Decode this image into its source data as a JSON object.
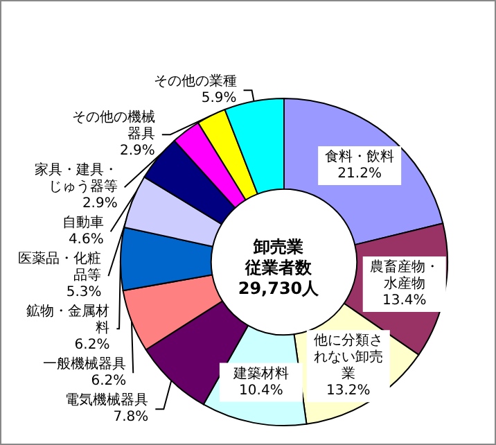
{
  "chart_data": {
    "type": "donut",
    "annotations": [
      "卸売業",
      "従業者数",
      "29,730人"
    ],
    "categories": [
      "食料・飲料",
      "農畜産物・水産物",
      "他に分類されない卸売業",
      "建築材料",
      "電気機械器具",
      "一般機械器具",
      "鉱物・金属材料",
      "医薬品・化粧品等",
      "自動車",
      "家具・建具・じゅう器等",
      "その他の機械器具",
      "その他の業種"
    ],
    "values": [
      21.2,
      13.4,
      13.2,
      10.4,
      7.8,
      6.2,
      6.2,
      5.3,
      4.6,
      2.9,
      2.9,
      5.9
    ],
    "colors": [
      "#9999ff",
      "#993366",
      "#ffffcc",
      "#ccffff",
      "#660066",
      "#ff8080",
      "#0066cc",
      "#ccccff",
      "#000080",
      "#ff00ff",
      "#ffff00",
      "#00ffff"
    ],
    "value_labels": [
      "21.2%",
      "13.4%",
      "13.2%",
      "10.4%",
      "7.8%",
      "6.2%",
      "6.2%",
      "5.3%",
      "4.6%",
      "2.9%",
      "2.9%",
      "5.9%"
    ],
    "legend": false
  }
}
